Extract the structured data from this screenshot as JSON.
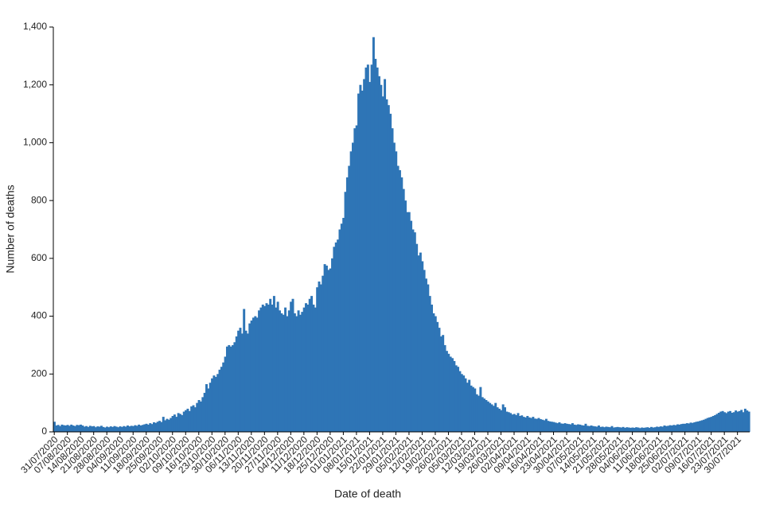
{
  "chart_data": {
    "type": "bar",
    "x_label": "Date of death",
    "y_label": "Number of deaths",
    "color": "#2e75b6",
    "ylim": [
      0,
      1400
    ],
    "yticks": [
      0,
      200,
      400,
      600,
      800,
      {
        "value": 1000,
        "label": "1,000"
      },
      {
        "value": 1200,
        "label": "1,200"
      },
      {
        "value": 1400,
        "label": "1,400"
      }
    ],
    "grid": false,
    "categories": [
      "31/07/2020",
      null,
      null,
      null,
      null,
      null,
      null,
      "07/08/2020",
      null,
      null,
      null,
      null,
      null,
      null,
      "14/08/2020",
      null,
      null,
      null,
      null,
      null,
      null,
      "21/08/2020",
      null,
      null,
      null,
      null,
      null,
      null,
      "28/08/2020",
      null,
      null,
      null,
      null,
      null,
      null,
      "04/09/2020",
      null,
      null,
      null,
      null,
      null,
      null,
      "11/09/2020",
      null,
      null,
      null,
      null,
      null,
      null,
      "18/09/2020",
      null,
      null,
      null,
      null,
      null,
      null,
      "25/09/2020",
      null,
      null,
      null,
      null,
      null,
      null,
      "02/10/2020",
      null,
      null,
      null,
      null,
      null,
      null,
      "09/10/2020",
      null,
      null,
      null,
      null,
      null,
      null,
      "16/10/2020",
      null,
      null,
      null,
      null,
      null,
      null,
      "23/10/2020",
      null,
      null,
      null,
      null,
      null,
      null,
      "30/10/2020",
      null,
      null,
      null,
      null,
      null,
      null,
      "06/11/2020",
      null,
      null,
      null,
      null,
      null,
      null,
      "13/11/2020",
      null,
      null,
      null,
      null,
      null,
      null,
      "20/11/2020",
      null,
      null,
      null,
      null,
      null,
      null,
      "27/11/2020",
      null,
      null,
      null,
      null,
      null,
      null,
      "04/12/2020",
      null,
      null,
      null,
      null,
      null,
      null,
      "11/12/2020",
      null,
      null,
      null,
      null,
      null,
      null,
      "18/12/2020",
      null,
      null,
      null,
      null,
      null,
      null,
      "25/12/2020",
      null,
      null,
      null,
      null,
      null,
      null,
      "01/01/2021",
      null,
      null,
      null,
      null,
      null,
      null,
      "08/01/2021",
      null,
      null,
      null,
      null,
      null,
      null,
      "15/01/2021",
      null,
      null,
      null,
      null,
      null,
      null,
      "22/01/2021",
      null,
      null,
      null,
      null,
      null,
      null,
      "29/01/2021",
      null,
      null,
      null,
      null,
      null,
      null,
      "05/02/2021",
      null,
      null,
      null,
      null,
      null,
      null,
      "12/02/2021",
      null,
      null,
      null,
      null,
      null,
      null,
      "19/02/2021",
      null,
      null,
      null,
      null,
      null,
      null,
      "26/02/2021",
      null,
      null,
      null,
      null,
      null,
      null,
      "05/03/2021",
      null,
      null,
      null,
      null,
      null,
      null,
      "12/03/2021",
      null,
      null,
      null,
      null,
      null,
      null,
      "19/03/2021",
      null,
      null,
      null,
      null,
      null,
      null,
      "26/03/2021",
      null,
      null,
      null,
      null,
      null,
      null,
      "02/04/2021",
      null,
      null,
      null,
      null,
      null,
      null,
      "09/04/2021",
      null,
      null,
      null,
      null,
      null,
      null,
      "16/04/2021",
      null,
      null,
      null,
      null,
      null,
      null,
      "23/04/2021",
      null,
      null,
      null,
      null,
      null,
      null,
      "30/04/2021",
      null,
      null,
      null,
      null,
      null,
      null,
      "07/05/2021",
      null,
      null,
      null,
      null,
      null,
      null,
      "14/05/2021",
      null,
      null,
      null,
      null,
      null,
      null,
      "21/05/2021",
      null,
      null,
      null,
      null,
      null,
      null,
      "28/05/2021",
      null,
      null,
      null,
      null,
      null,
      null,
      "04/06/2021",
      null,
      null,
      null,
      null,
      null,
      null,
      "11/06/2021",
      null,
      null,
      null,
      null,
      null,
      null,
      "18/06/2021",
      null,
      null,
      null,
      null,
      null,
      null,
      "25/06/2021",
      null,
      null,
      null,
      null,
      null,
      null,
      "02/07/2021",
      null,
      null,
      null,
      null,
      null,
      null,
      "09/07/2021",
      null,
      null,
      null,
      null,
      null,
      null,
      "16/07/2021",
      null,
      null,
      null,
      null,
      null,
      null,
      "23/07/2021",
      null,
      null,
      null,
      null,
      null,
      null,
      "30/07/2021",
      null,
      null,
      null,
      null,
      null,
      null
    ],
    "values": [
      35,
      22,
      24,
      20,
      25,
      23,
      22,
      24,
      21,
      25,
      22,
      20,
      24,
      23,
      25,
      22,
      18,
      20,
      17,
      21,
      19,
      20,
      16,
      19,
      18,
      21,
      17,
      15,
      18,
      16,
      19,
      17,
      20,
      18,
      16,
      19,
      17,
      20,
      18,
      22,
      19,
      21,
      20,
      23,
      21,
      25,
      22,
      24,
      26,
      28,
      25,
      30,
      27,
      33,
      31,
      35,
      38,
      34,
      52,
      40,
      45,
      42,
      48,
      55,
      60,
      52,
      65,
      62,
      58,
      70,
      75,
      80,
      72,
      88,
      92,
      85,
      100,
      110,
      105,
      120,
      135,
      165,
      150,
      170,
      185,
      195,
      190,
      200,
      215,
      225,
      240,
      260,
      295,
      300,
      295,
      300,
      310,
      330,
      350,
      360,
      340,
      425,
      350,
      340,
      375,
      385,
      395,
      400,
      395,
      420,
      430,
      440,
      435,
      445,
      440,
      460,
      440,
      470,
      430,
      450,
      420,
      410,
      405,
      430,
      400,
      420,
      450,
      460,
      410,
      400,
      420,
      405,
      415,
      430,
      445,
      440,
      460,
      470,
      440,
      430,
      500,
      520,
      510,
      540,
      580,
      575,
      560,
      565,
      600,
      640,
      655,
      665,
      700,
      720,
      740,
      830,
      880,
      920,
      970,
      1000,
      1050,
      1060,
      1170,
      1200,
      1180,
      1220,
      1260,
      1270,
      1210,
      1270,
      1365,
      1290,
      1260,
      1230,
      1200,
      1160,
      1220,
      1150,
      1130,
      1100,
      1050,
      1000,
      970,
      920,
      905,
      880,
      840,
      800,
      760,
      760,
      730,
      700,
      690,
      650,
      610,
      620,
      590,
      560,
      530,
      510,
      470,
      440,
      410,
      400,
      380,
      360,
      330,
      335,
      300,
      280,
      270,
      260,
      255,
      245,
      230,
      225,
      210,
      200,
      195,
      185,
      170,
      180,
      160,
      155,
      150,
      130,
      125,
      155,
      120,
      115,
      110,
      105,
      100,
      95,
      90,
      100,
      85,
      80,
      75,
      95,
      85,
      70,
      68,
      65,
      60,
      62,
      58,
      65,
      55,
      57,
      52,
      50,
      55,
      50,
      48,
      52,
      46,
      45,
      48,
      44,
      42,
      40,
      45,
      38,
      36,
      35,
      34,
      32,
      30,
      33,
      29,
      28,
      30,
      28,
      27,
      26,
      30,
      25,
      24,
      26,
      25,
      23,
      22,
      28,
      21,
      20,
      22,
      20,
      19,
      18,
      22,
      17,
      18,
      16,
      18,
      17,
      16,
      20,
      15,
      16,
      17,
      16,
      15,
      17,
      14,
      16,
      15,
      14,
      15,
      14,
      16,
      15,
      13,
      15,
      14,
      15,
      16,
      14,
      17,
      15,
      16,
      18,
      17,
      19,
      18,
      22,
      20,
      21,
      23,
      22,
      24,
      23,
      26,
      25,
      27,
      28,
      28,
      30,
      29,
      32,
      31,
      33,
      35,
      36,
      38,
      40,
      42,
      45,
      48,
      50,
      52,
      55,
      58,
      62,
      66,
      70,
      72,
      68,
      65,
      70,
      72,
      66,
      68,
      74,
      70,
      72,
      76,
      68,
      80,
      74,
      70
    ]
  }
}
